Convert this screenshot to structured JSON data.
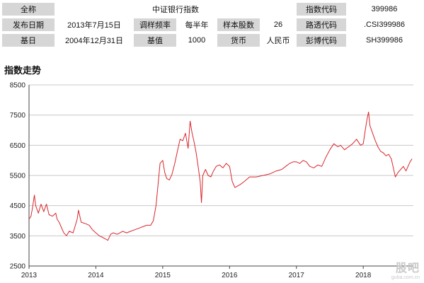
{
  "info": {
    "full_name_label": "全称",
    "full_name_value": "中证银行指数",
    "index_code_label": "指数代码",
    "index_code_value": "399986",
    "release_date_label": "发布日期",
    "release_date_value": "2013年7月15日",
    "rebalance_label": "调样频率",
    "rebalance_value": "每半年",
    "sample_count_label": "样本股数",
    "sample_count_value": "26",
    "reuters_label": "路透代码",
    "reuters_value": ".CSI399986",
    "base_date_label": "基日",
    "base_date_value": "2004年12月31日",
    "base_value_label": "基值",
    "base_value_value": "1000",
    "currency_label": "货币",
    "currency_value": "人民币",
    "bloomberg_label": "彭博代码",
    "bloomberg_value": "SH399986"
  },
  "section_title": "指数走势",
  "watermark": {
    "main": "股吧",
    "sub": "guba.com.cn"
  },
  "colors": {
    "line": "#d9262c",
    "grid": "#c8c8c8",
    "axis": "#444444"
  },
  "chart_data": {
    "type": "line",
    "title": "",
    "xlabel": "",
    "ylabel": "",
    "x_ticks": [
      "2013",
      "2014",
      "2015",
      "2016",
      "2017",
      "2018"
    ],
    "y_ticks": [
      2500,
      3500,
      4500,
      5500,
      6500,
      7500,
      8500
    ],
    "xlim": [
      2013.0,
      2018.75
    ],
    "ylim": [
      2500,
      8500
    ],
    "grid": true,
    "legend": "none",
    "series": [
      {
        "name": "",
        "points": [
          [
            2013.0,
            4050
          ],
          [
            2013.03,
            4150
          ],
          [
            2013.05,
            4400
          ],
          [
            2013.08,
            4850
          ],
          [
            2013.1,
            4500
          ],
          [
            2013.14,
            4250
          ],
          [
            2013.18,
            4550
          ],
          [
            2013.22,
            4300
          ],
          [
            2013.26,
            4550
          ],
          [
            2013.3,
            4200
          ],
          [
            2013.35,
            4150
          ],
          [
            2013.4,
            4250
          ],
          [
            2013.42,
            4050
          ],
          [
            2013.45,
            3950
          ],
          [
            2013.48,
            3800
          ],
          [
            2013.52,
            3600
          ],
          [
            2013.56,
            3500
          ],
          [
            2013.6,
            3650
          ],
          [
            2013.66,
            3600
          ],
          [
            2013.72,
            4050
          ],
          [
            2013.74,
            4350
          ],
          [
            2013.78,
            3950
          ],
          [
            2013.85,
            3900
          ],
          [
            2013.9,
            3850
          ],
          [
            2013.95,
            3700
          ],
          [
            2014.0,
            3600
          ],
          [
            2014.05,
            3500
          ],
          [
            2014.1,
            3450
          ],
          [
            2014.14,
            3400
          ],
          [
            2014.18,
            3350
          ],
          [
            2014.22,
            3550
          ],
          [
            2014.26,
            3600
          ],
          [
            2014.32,
            3550
          ],
          [
            2014.4,
            3650
          ],
          [
            2014.46,
            3600
          ],
          [
            2014.52,
            3650
          ],
          [
            2014.58,
            3700
          ],
          [
            2014.64,
            3750
          ],
          [
            2014.7,
            3800
          ],
          [
            2014.76,
            3850
          ],
          [
            2014.82,
            3850
          ],
          [
            2014.86,
            4000
          ],
          [
            2014.9,
            4500
          ],
          [
            2014.93,
            5200
          ],
          [
            2014.96,
            5900
          ],
          [
            2015.0,
            6000
          ],
          [
            2015.03,
            5600
          ],
          [
            2015.06,
            5400
          ],
          [
            2015.1,
            5350
          ],
          [
            2015.14,
            5550
          ],
          [
            2015.18,
            5900
          ],
          [
            2015.22,
            6300
          ],
          [
            2015.26,
            6700
          ],
          [
            2015.3,
            6650
          ],
          [
            2015.34,
            6900
          ],
          [
            2015.38,
            6400
          ],
          [
            2015.41,
            7300
          ],
          [
            2015.44,
            6900
          ],
          [
            2015.47,
            6600
          ],
          [
            2015.5,
            6250
          ],
          [
            2015.53,
            5800
          ],
          [
            2015.56,
            5300
          ],
          [
            2015.58,
            4600
          ],
          [
            2015.6,
            5500
          ],
          [
            2015.64,
            5700
          ],
          [
            2015.68,
            5500
          ],
          [
            2015.72,
            5450
          ],
          [
            2015.76,
            5650
          ],
          [
            2015.8,
            5800
          ],
          [
            2015.85,
            5850
          ],
          [
            2015.9,
            5750
          ],
          [
            2015.95,
            5900
          ],
          [
            2016.0,
            5800
          ],
          [
            2016.04,
            5300
          ],
          [
            2016.08,
            5100
          ],
          [
            2016.12,
            5150
          ],
          [
            2016.16,
            5200
          ],
          [
            2016.22,
            5300
          ],
          [
            2016.3,
            5450
          ],
          [
            2016.4,
            5450
          ],
          [
            2016.5,
            5500
          ],
          [
            2016.6,
            5550
          ],
          [
            2016.7,
            5650
          ],
          [
            2016.78,
            5700
          ],
          [
            2016.84,
            5800
          ],
          [
            2016.9,
            5900
          ],
          [
            2016.95,
            5950
          ],
          [
            2017.0,
            5950
          ],
          [
            2017.05,
            5900
          ],
          [
            2017.1,
            6000
          ],
          [
            2017.15,
            5950
          ],
          [
            2017.2,
            5800
          ],
          [
            2017.26,
            5750
          ],
          [
            2017.32,
            5850
          ],
          [
            2017.38,
            5800
          ],
          [
            2017.44,
            6100
          ],
          [
            2017.5,
            6350
          ],
          [
            2017.56,
            6550
          ],
          [
            2017.62,
            6450
          ],
          [
            2017.66,
            6500
          ],
          [
            2017.72,
            6350
          ],
          [
            2017.78,
            6450
          ],
          [
            2017.84,
            6550
          ],
          [
            2017.9,
            6700
          ],
          [
            2017.96,
            6500
          ],
          [
            2018.0,
            6550
          ],
          [
            2018.03,
            7000
          ],
          [
            2018.06,
            7400
          ],
          [
            2018.08,
            7600
          ],
          [
            2018.1,
            7150
          ],
          [
            2018.14,
            6900
          ],
          [
            2018.18,
            6650
          ],
          [
            2018.22,
            6450
          ],
          [
            2018.26,
            6300
          ],
          [
            2018.3,
            6250
          ],
          [
            2018.34,
            6150
          ],
          [
            2018.38,
            6200
          ],
          [
            2018.42,
            6050
          ],
          [
            2018.45,
            5750
          ],
          [
            2018.48,
            5450
          ],
          [
            2018.52,
            5600
          ],
          [
            2018.56,
            5700
          ],
          [
            2018.6,
            5800
          ],
          [
            2018.64,
            5650
          ],
          [
            2018.67,
            5800
          ],
          [
            2018.7,
            5950
          ],
          [
            2018.73,
            6050
          ]
        ]
      }
    ]
  }
}
